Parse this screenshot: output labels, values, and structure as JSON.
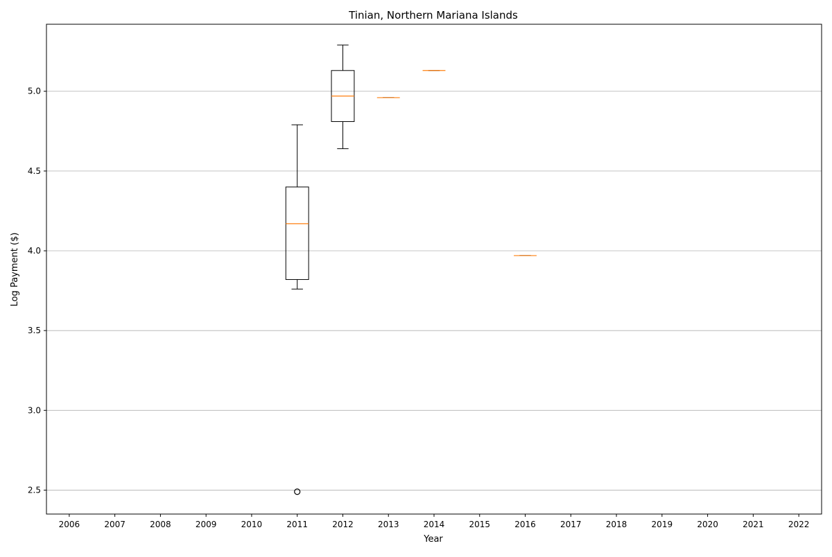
{
  "chart_data": {
    "type": "boxplot",
    "title": "Tinian, Northern Mariana Islands",
    "xlabel": "Year",
    "ylabel": "Log Payment ($)",
    "categories": [
      "2006",
      "2007",
      "2008",
      "2009",
      "2010",
      "2011",
      "2012",
      "2013",
      "2014",
      "2015",
      "2016",
      "2017",
      "2018",
      "2019",
      "2020",
      "2021",
      "2022"
    ],
    "ylim": [
      2.35,
      5.42
    ],
    "yticks": [
      2.5,
      3.0,
      3.5,
      4.0,
      4.5,
      5.0
    ],
    "ytick_labels": [
      "2.5",
      "3.0",
      "3.5",
      "4.0",
      "4.5",
      "5.0"
    ],
    "grid": "y",
    "boxes": [
      {
        "category": "2011",
        "whisker_low": 3.76,
        "q1": 3.82,
        "median": 4.17,
        "q3": 4.4,
        "whisker_high": 4.79,
        "outliers": [
          2.49
        ]
      },
      {
        "category": "2012",
        "whisker_low": 4.64,
        "q1": 4.81,
        "median": 4.97,
        "q3": 5.13,
        "whisker_high": 5.29,
        "outliers": []
      },
      {
        "category": "2013",
        "whisker_low": 4.96,
        "q1": 4.96,
        "median": 4.96,
        "q3": 4.96,
        "whisker_high": 4.96,
        "outliers": []
      },
      {
        "category": "2014",
        "whisker_low": 5.13,
        "q1": 5.13,
        "median": 5.13,
        "q3": 5.13,
        "whisker_high": 5.13,
        "outliers": []
      },
      {
        "category": "2016",
        "whisker_low": 3.97,
        "q1": 3.97,
        "median": 3.97,
        "q3": 3.97,
        "whisker_high": 3.97,
        "outliers": []
      }
    ],
    "colors": {
      "box": "#000000",
      "median": "#ff7f0e",
      "grid": "#b0b0b0"
    }
  }
}
